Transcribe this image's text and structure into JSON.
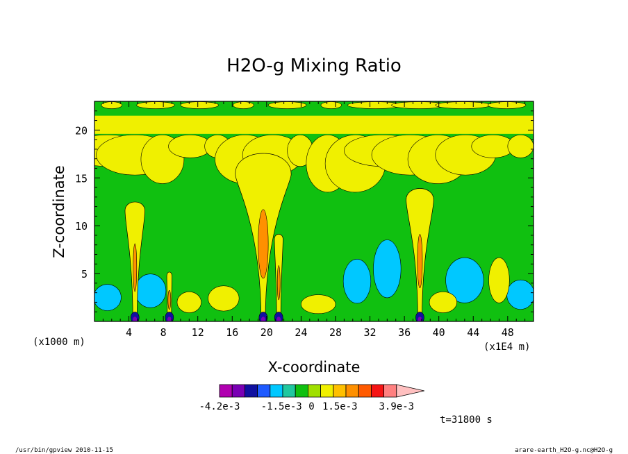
{
  "chart_data": {
    "type": "heatmap",
    "title": "H2O-g Mixing Ratio",
    "xlabel": "X-coordinate",
    "ylabel": "Z-coordinate",
    "x_unit_left": "(x1000 m)",
    "x_unit_right": "(x1E4 m)",
    "x_ticks": [
      4,
      8,
      12,
      16,
      20,
      24,
      28,
      32,
      36,
      40,
      44,
      48
    ],
    "y_ticks": [
      5,
      10,
      15,
      20
    ],
    "xlim": [
      0,
      51
    ],
    "ylim": [
      0,
      23
    ],
    "time_label": "t=31800 s",
    "colorbar": {
      "colors": [
        "#b000b0",
        "#7a00b4",
        "#1010a0",
        "#1e5aff",
        "#00c8ff",
        "#20c8a0",
        "#10c010",
        "#a0e000",
        "#f0f000",
        "#ffc000",
        "#ff9000",
        "#ff5a00",
        "#f51414",
        "#ff8080",
        "#ffc0c0"
      ],
      "labels": [
        {
          "text": "-4.2e-3",
          "at": 0
        },
        {
          "text": "-1.5e-3",
          "at": 0.35
        },
        {
          "text": "0",
          "at": 0.52
        },
        {
          "text": "1.5e-3",
          "at": 0.68
        },
        {
          "text": "3.9e-3",
          "at": 1.0
        }
      ]
    },
    "plumes": [
      {
        "x": 4.7,
        "top": 12.5,
        "width": 2.3
      },
      {
        "x": 8.7,
        "top": 5.0,
        "width": 0.6
      },
      {
        "x": 19.6,
        "top": 18.0,
        "width": 6.5
      },
      {
        "x": 21.4,
        "top": 9.0,
        "width": 1.0
      },
      {
        "x": 37.8,
        "top": 14.0,
        "width": 3.2
      }
    ],
    "background_color": "#10c010",
    "field_colors": {
      "positive_small": "#f0f000",
      "positive_mid": "#ffc000",
      "positive_high": "#ff9000",
      "negative_small": "#00c8ff",
      "negative_mid": "#1010a0",
      "negative_high": "#7a00b4"
    }
  },
  "footer": {
    "left": "/usr/bin/gpview  2010-11-15",
    "right": "arare-earth_H2O-g.nc@H2O-g"
  }
}
